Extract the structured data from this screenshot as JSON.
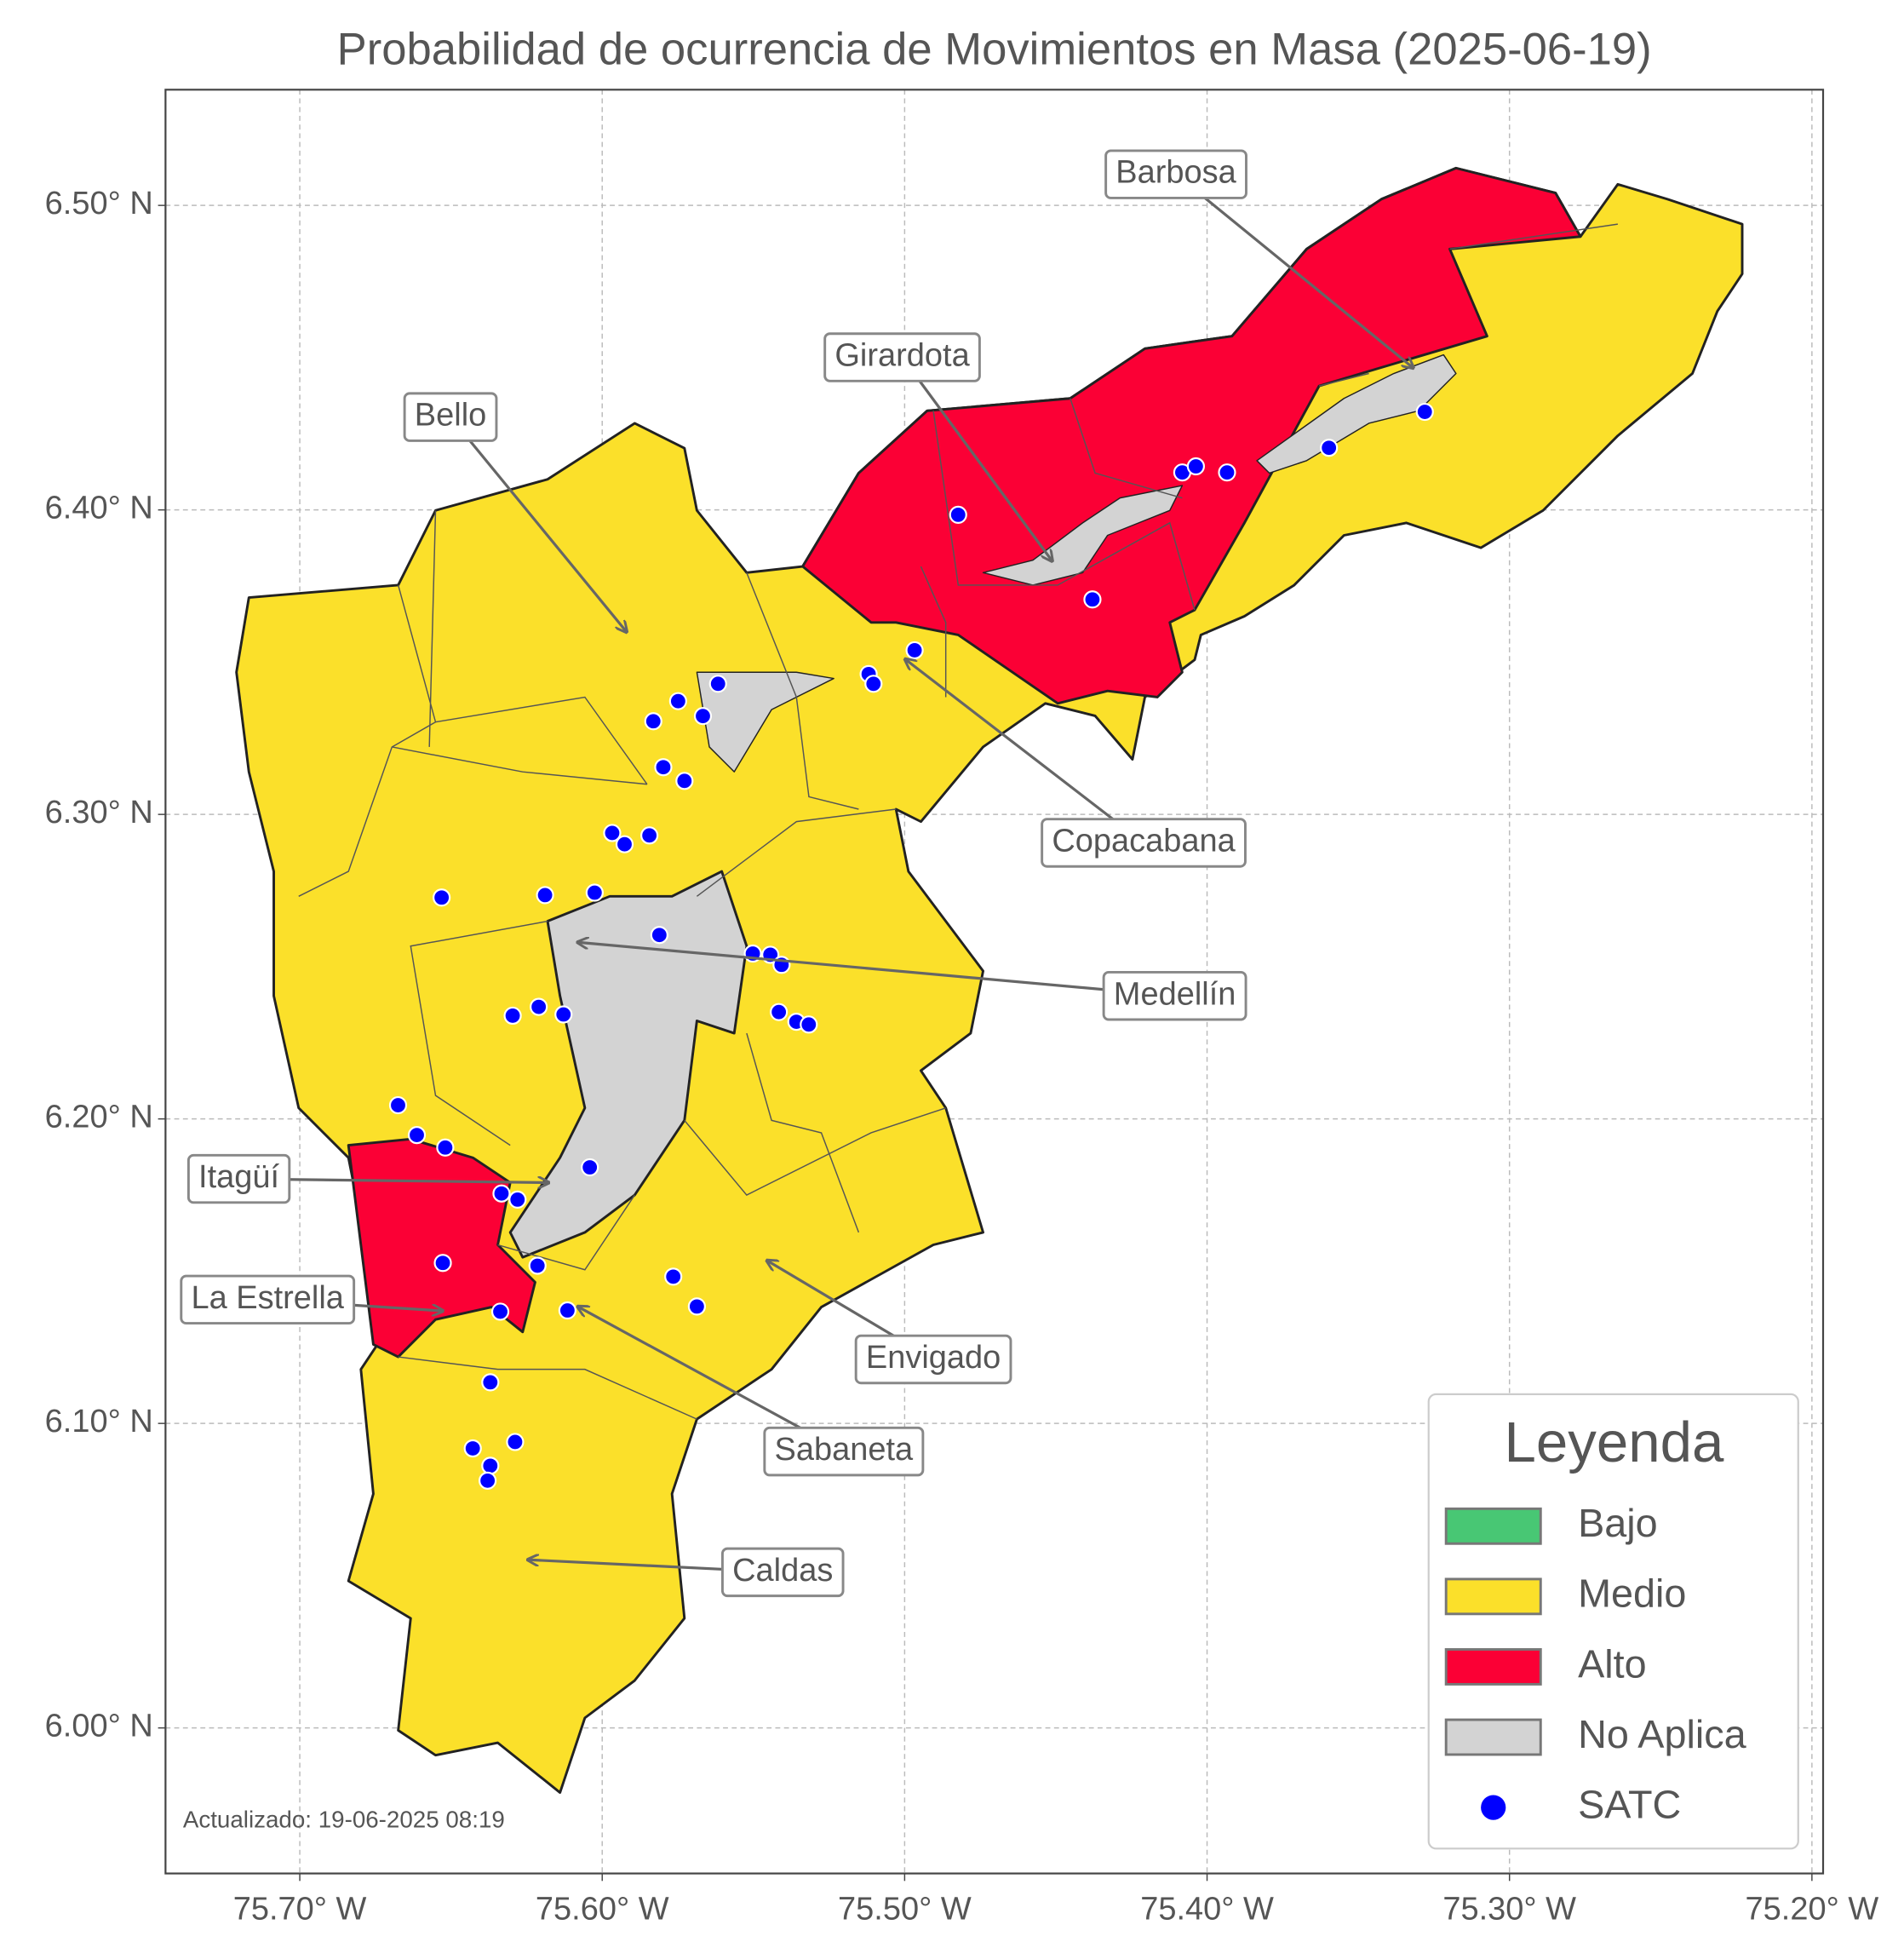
{
  "chart_data": {
    "type": "map",
    "title": "Probabilidad de ocurrencia de Movimientos en Masa (2025-06-19)",
    "xlim": [
      -75.7444,
      -75.1963
    ],
    "ylim": [
      5.9522,
      6.538
    ],
    "xticks": [
      {
        "value": -75.7,
        "label": "75.70° W"
      },
      {
        "value": -75.6,
        "label": "75.60° W"
      },
      {
        "value": -75.5,
        "label": "75.50° W"
      },
      {
        "value": -75.4,
        "label": "75.40° W"
      },
      {
        "value": -75.3,
        "label": "75.30° W"
      },
      {
        "value": -75.2,
        "label": "75.20° W"
      }
    ],
    "yticks": [
      {
        "value": 6.0,
        "label": "6.00° N"
      },
      {
        "value": 6.1,
        "label": "6.10° N"
      },
      {
        "value": 6.2,
        "label": "6.20° N"
      },
      {
        "value": 6.3,
        "label": "6.30° N"
      },
      {
        "value": 6.4,
        "label": "6.40° N"
      },
      {
        "value": 6.5,
        "label": "6.50° N"
      }
    ],
    "grid": true,
    "annotations": [
      "Barbosa",
      "Girardota",
      "Bello",
      "Copacabana",
      "Medellín",
      "Itagüí",
      "La Estrella",
      "Envigado",
      "Sabaneta",
      "Caldas"
    ],
    "footnote": "Actualizado: 19-06-2025 08:19",
    "legend": {
      "title": "Leyenda",
      "position": "lower right",
      "entries": [
        {
          "name": "Bajo",
          "color": "#48c774"
        },
        {
          "name": "Medio",
          "color": "#fbe02a"
        },
        {
          "name": "Alto",
          "color": "#fb0035"
        },
        {
          "name": "No Aplica",
          "color": "#d3d3d3"
        },
        {
          "name": "SATC",
          "color": "#0000ff"
        }
      ]
    },
    "satc": {
      "lon": [
        -75.6531,
        -75.6189,
        -75.6025,
        -75.5967,
        -75.5926,
        -75.5844,
        -75.5811,
        -75.5749,
        -75.5831,
        -75.5667,
        -75.5617,
        -75.5798,
        -75.5728,
        -75.5502,
        -75.5444,
        -75.5407,
        -75.5416,
        -75.5358,
        -75.5317,
        -75.6296,
        -75.621,
        -75.6128,
        -75.6675,
        -75.6613,
        -75.6519,
        -75.6041,
        -75.6333,
        -75.628,
        -75.6527,
        -75.6214,
        -75.6337,
        -75.6115,
        -75.5765,
        -75.5687,
        -75.637,
        -75.6428,
        -75.637,
        -75.6288,
        -75.6379,
        -75.4823,
        -75.4082,
        -75.4037,
        -75.3934,
        -75.4379,
        -75.3597,
        -75.328,
        -75.5119,
        -75.5103,
        -75.4967
      ],
      "lat": [
        6.2727,
        6.2735,
        6.2743,
        6.2939,
        6.2902,
        6.2931,
        6.2604,
        6.3372,
        6.3306,
        6.3323,
        6.3429,
        6.3155,
        6.311,
        6.2543,
        6.2539,
        6.2506,
        6.2351,
        6.2319,
        6.231,
        6.2339,
        6.2368,
        6.2343,
        6.2045,
        6.1947,
        6.1906,
        6.1841,
        6.1755,
        6.1735,
        6.1527,
        6.1518,
        6.1367,
        6.1371,
        6.1482,
        6.1384,
        6.1135,
        6.0918,
        6.0861,
        6.0939,
        6.0812,
        6.3984,
        6.4123,
        6.4143,
        6.4123,
        6.3706,
        6.4204,
        6.4322,
        6.3461,
        6.3429,
        6.3539
      ]
    }
  }
}
